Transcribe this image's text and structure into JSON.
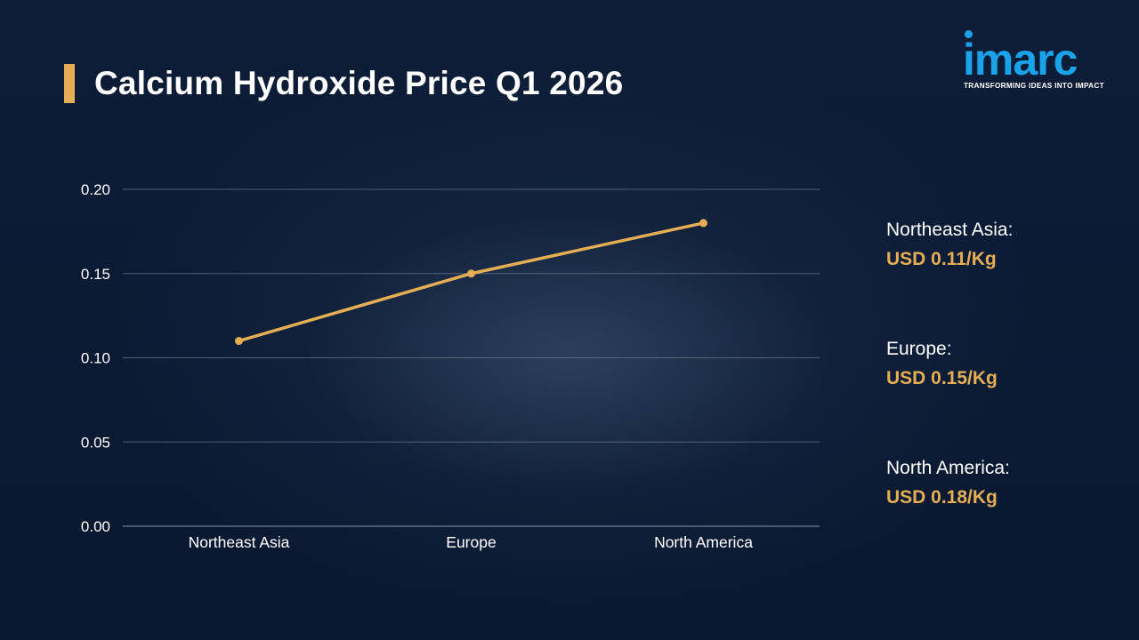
{
  "title": "Calcium Hydroxide Price Q1 2026",
  "logo": {
    "word": "imarc",
    "tagline": "TRANSFORMING IDEAS INTO IMPACT"
  },
  "colors": {
    "accent": "#e5ae55",
    "background": "#0b1a33",
    "logo": "#1aa3e8",
    "grid": "#6b7a93"
  },
  "legend": [
    {
      "name": "Northeast Asia:",
      "value": "USD 0.11/Kg"
    },
    {
      "name": "Europe:",
      "value": "USD 0.15/Kg"
    },
    {
      "name": "North America:",
      "value": "USD 0.18/Kg"
    }
  ],
  "chart_data": {
    "type": "line",
    "title": "",
    "xlabel": "",
    "ylabel": "",
    "categories": [
      "Northeast Asia",
      "Europe",
      "North America"
    ],
    "values": [
      0.11,
      0.15,
      0.18
    ],
    "ylim": [
      0,
      0.2
    ],
    "yticks": [
      "0.00",
      "0.05",
      "0.10",
      "0.15",
      "0.20"
    ],
    "grid": true,
    "line_color": "#e5ae55"
  }
}
